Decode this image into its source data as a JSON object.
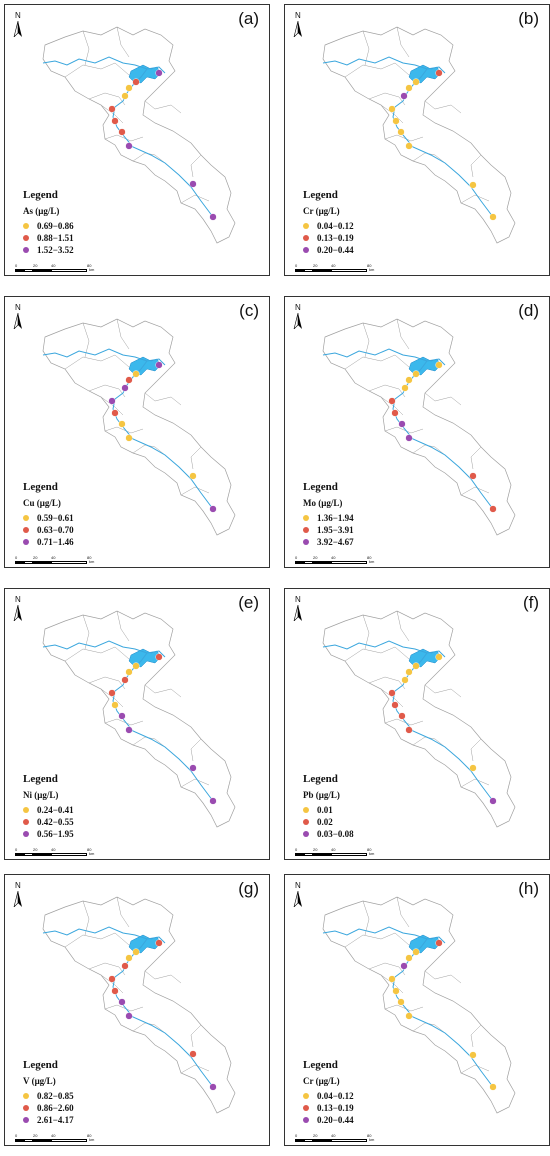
{
  "north_label": "N",
  "legend_title": "Legend",
  "scale": {
    "ticks": [
      "0",
      "20",
      "40",
      "80"
    ],
    "unit": "km"
  },
  "colors": {
    "class1": "#f5c542",
    "class2": "#e05a4a",
    "class3": "#9a4bb0",
    "river": "#3aa6dd",
    "lake": "#3bb8ec",
    "boundary": "#a0a0a0"
  },
  "panels": [
    {
      "label": "(a)",
      "variable": "As (μg/L)",
      "classes": [
        "0.69−0.86",
        "0.88−1.51",
        "1.52−3.52"
      ],
      "sites": [
        2,
        1,
        0,
        0,
        1,
        1,
        1,
        2,
        2,
        2
      ]
    },
    {
      "label": "(b)",
      "variable": "Cr (μg/L)",
      "classes": [
        "0.04−0.12",
        "0.13−0.19",
        "0.20−0.44"
      ],
      "sites": [
        1,
        0,
        0,
        2,
        0,
        0,
        0,
        0,
        0,
        0
      ]
    },
    {
      "label": "(c)",
      "variable": "Cu (μg/L)",
      "classes": [
        "0.59−0.61",
        "0.63−0.70",
        "0.71−1.46"
      ],
      "sites": [
        2,
        0,
        1,
        2,
        2,
        1,
        0,
        0,
        0,
        2
      ]
    },
    {
      "label": "(d)",
      "variable": "Mo (μg/L)",
      "classes": [
        "1.36−1.94",
        "1.95−3.91",
        "3.92−4.67"
      ],
      "sites": [
        0,
        0,
        0,
        0,
        1,
        1,
        2,
        2,
        1,
        1
      ]
    },
    {
      "label": "(e)",
      "variable": "Ni (μg/L)",
      "classes": [
        "0.24−0.41",
        "0.42−0.55",
        "0.56−1.95"
      ],
      "sites": [
        1,
        0,
        0,
        1,
        1,
        0,
        2,
        2,
        2,
        2
      ]
    },
    {
      "label": "(f)",
      "variable": "Pb (μg/L)",
      "classes": [
        "0.01",
        "0.02",
        "0.03−0.08"
      ],
      "sites": [
        0,
        0,
        0,
        0,
        1,
        1,
        1,
        1,
        0,
        2
      ]
    },
    {
      "label": "(g)",
      "variable": "V (μg/L)",
      "classes": [
        "0.82−0.85",
        "0.86−2.60",
        "2.61−4.17"
      ],
      "sites": [
        1,
        0,
        0,
        1,
        1,
        1,
        2,
        2,
        1,
        2
      ]
    },
    {
      "label": "(h)",
      "variable": "Cr (μg/L)",
      "classes": [
        "0.04−0.12",
        "0.13−0.19",
        "0.20−0.44"
      ],
      "sites": [
        1,
        0,
        0,
        2,
        0,
        0,
        0,
        0,
        0,
        0
      ]
    }
  ]
}
